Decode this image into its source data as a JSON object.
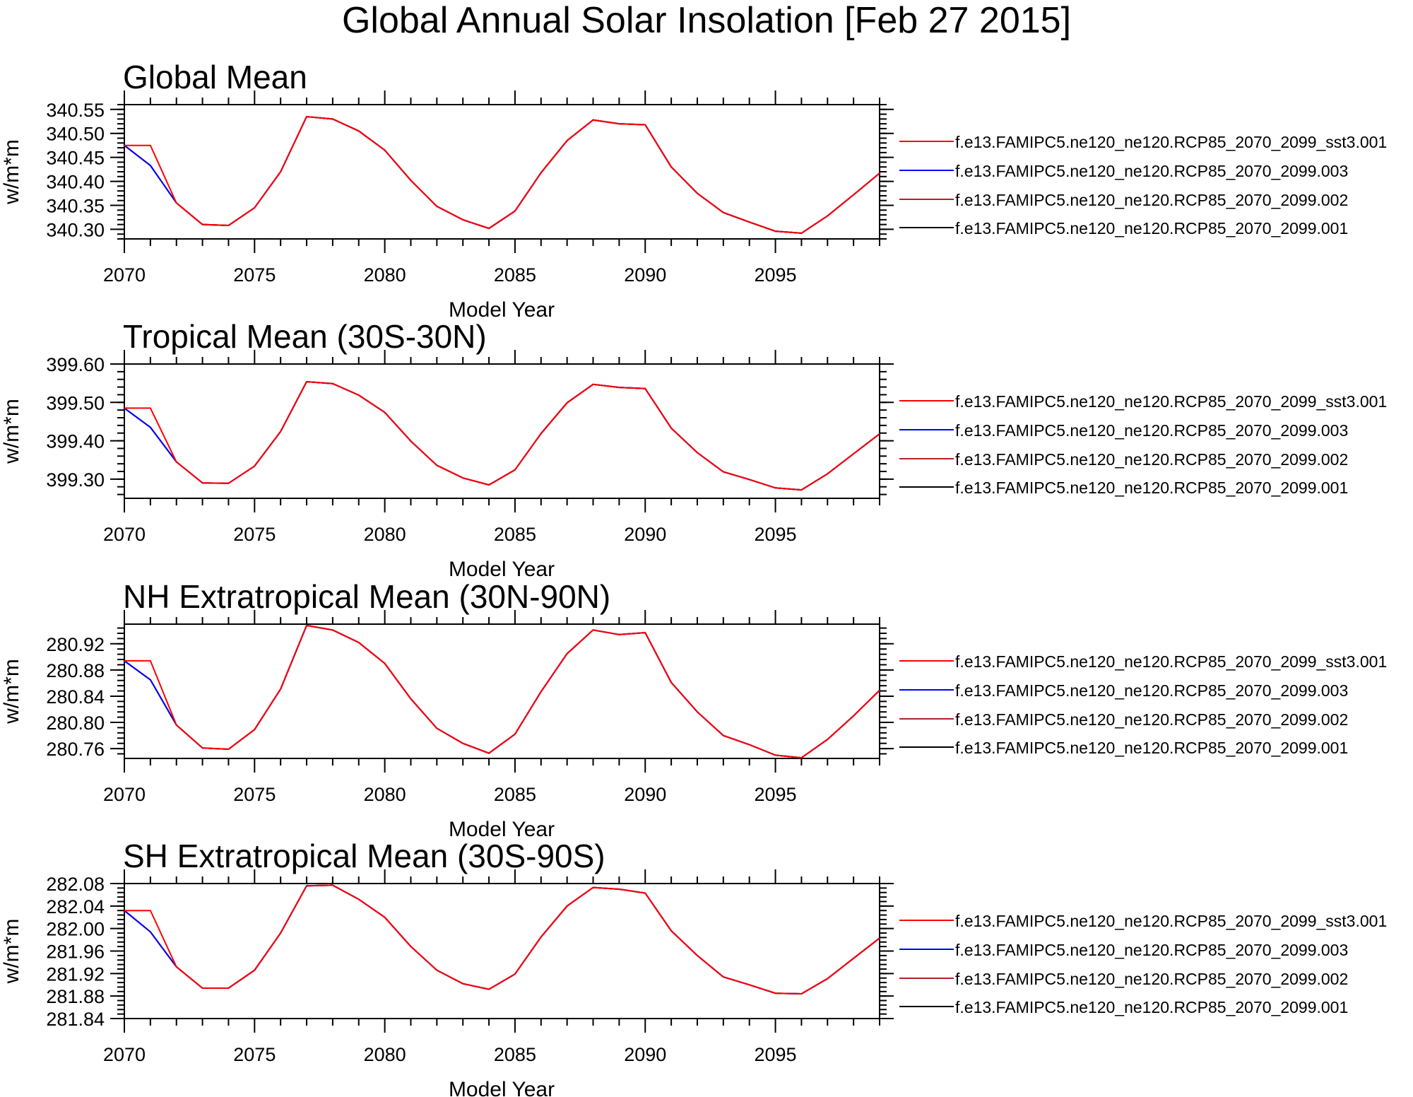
{
  "page": {
    "title": "Global Annual Solar Insolation [Feb 27 2015]"
  },
  "legend_entries": [
    {
      "name": "f.e13.FAMIPC5.ne120_ne120.RCP85_2070_2099_sst3.001",
      "color": "#ff0000"
    },
    {
      "name": "f.e13.FAMIPC5.ne120_ne120.RCP85_2070_2099.003",
      "color": "#0000ff"
    },
    {
      "name": "f.e13.FAMIPC5.ne120_ne120.RCP85_2070_2099.002",
      "color": "#b22222"
    },
    {
      "name": "f.e13.FAMIPC5.ne120_ne120.RCP85_2070_2099.001",
      "color": "#000000"
    }
  ],
  "chart_data": [
    {
      "type": "line",
      "title": "Global Mean",
      "xlabel": "Model Year",
      "ylabel": "w/m*m",
      "xlim": [
        2070,
        2099
      ],
      "ylim": [
        340.28,
        340.56
      ],
      "xticks": [
        "2070",
        "2075",
        "2080",
        "2085",
        "2090",
        "2095"
      ],
      "yticks": [
        "340.30",
        "340.35",
        "340.40",
        "340.45",
        "340.50",
        "340.55"
      ],
      "legend": "right",
      "x": [
        2070,
        2071,
        2072,
        2073,
        2074,
        2075,
        2076,
        2077,
        2078,
        2079,
        2080,
        2081,
        2082,
        2083,
        2084,
        2085,
        2086,
        2087,
        2088,
        2089,
        2090,
        2091,
        2092,
        2093,
        2094,
        2095,
        2096,
        2097,
        2098,
        2099
      ],
      "series": [
        {
          "name": "f.e13.FAMIPC5.ne120_ne120.RCP85_2070_2099_sst3.001",
          "color": "#ff0000",
          "values": [
            340.475,
            340.475,
            340.355,
            340.31,
            340.308,
            340.345,
            340.42,
            340.535,
            340.53,
            340.505,
            340.465,
            340.402,
            340.348,
            340.32,
            340.302,
            340.338,
            340.418,
            340.485,
            340.528,
            340.52,
            340.518,
            340.43,
            340.375,
            340.335,
            340.315,
            340.296,
            340.292,
            340.328,
            340.372,
            340.417
          ]
        },
        {
          "name": "f.e13.FAMIPC5.ne120_ne120.RCP85_2070_2099.003",
          "color": "#0000ff",
          "values": [
            340.475,
            340.433,
            340.355,
            340.31,
            340.308,
            340.345,
            340.42,
            340.535,
            340.53,
            340.505,
            340.465,
            340.402,
            340.348,
            340.32,
            340.302,
            340.338,
            340.418,
            340.485,
            340.528,
            340.52,
            340.518,
            340.43,
            340.375,
            340.335,
            340.315,
            340.296,
            340.292,
            340.328,
            340.372,
            340.417
          ]
        },
        {
          "name": "f.e13.FAMIPC5.ne120_ne120.RCP85_2070_2099.002",
          "color": "#b22222",
          "values": [
            340.475,
            340.433,
            340.355,
            340.31,
            340.308,
            340.345,
            340.42,
            340.535,
            340.53,
            340.505,
            340.465,
            340.402,
            340.348,
            340.32,
            340.302,
            340.338,
            340.418,
            340.485,
            340.528,
            340.52,
            340.518,
            340.43,
            340.375,
            340.335,
            340.315,
            340.296,
            340.292,
            340.328,
            340.372,
            340.417
          ]
        },
        {
          "name": "f.e13.FAMIPC5.ne120_ne120.RCP85_2070_2099.001",
          "color": "#000000",
          "values": [
            340.475,
            340.433,
            340.355,
            340.31,
            340.308,
            340.345,
            340.42,
            340.535,
            340.53,
            340.505,
            340.465,
            340.402,
            340.348,
            340.32,
            340.302,
            340.338,
            340.418,
            340.485,
            340.528,
            340.52,
            340.518,
            340.43,
            340.375,
            340.335,
            340.315,
            340.296,
            340.292,
            340.328,
            340.372,
            340.417
          ]
        }
      ]
    },
    {
      "type": "line",
      "title": "Tropical Mean (30S-30N)",
      "xlabel": "Model Year",
      "ylabel": "w/m*m",
      "xlim": [
        2070,
        2099
      ],
      "ylim": [
        399.25,
        399.6
      ],
      "xticks": [
        "2070",
        "2075",
        "2080",
        "2085",
        "2090",
        "2095"
      ],
      "yticks": [
        "399.30",
        "399.40",
        "399.50",
        "399.60"
      ],
      "legend": "right",
      "x": [
        2070,
        2071,
        2072,
        2073,
        2074,
        2075,
        2076,
        2077,
        2078,
        2079,
        2080,
        2081,
        2082,
        2083,
        2084,
        2085,
        2086,
        2087,
        2088,
        2089,
        2090,
        2091,
        2092,
        2093,
        2094,
        2095,
        2096,
        2097,
        2098,
        2099
      ],
      "series": [
        {
          "name": "f.e13.FAMIPC5.ne120_ne120.RCP85_2070_2099_sst3.001",
          "color": "#ff0000",
          "values": [
            399.485,
            399.485,
            399.345,
            399.29,
            399.289,
            399.334,
            399.424,
            399.554,
            399.549,
            399.519,
            399.474,
            399.399,
            399.336,
            399.303,
            399.285,
            399.324,
            399.419,
            399.499,
            399.547,
            399.539,
            399.536,
            399.433,
            399.369,
            399.319,
            399.299,
            399.277,
            399.272,
            399.314,
            399.366,
            399.418
          ]
        },
        {
          "name": "f.e13.FAMIPC5.ne120_ne120.RCP85_2070_2099.003",
          "color": "#0000ff",
          "values": [
            399.485,
            399.435,
            399.345,
            399.29,
            399.289,
            399.334,
            399.424,
            399.554,
            399.549,
            399.519,
            399.474,
            399.399,
            399.336,
            399.303,
            399.285,
            399.324,
            399.419,
            399.499,
            399.547,
            399.539,
            399.536,
            399.433,
            399.369,
            399.319,
            399.299,
            399.277,
            399.272,
            399.314,
            399.366,
            399.418
          ]
        },
        {
          "name": "f.e13.FAMIPC5.ne120_ne120.RCP85_2070_2099.002",
          "color": "#b22222",
          "values": [
            399.485,
            399.435,
            399.345,
            399.29,
            399.289,
            399.334,
            399.424,
            399.554,
            399.549,
            399.519,
            399.474,
            399.399,
            399.336,
            399.303,
            399.285,
            399.324,
            399.419,
            399.499,
            399.547,
            399.539,
            399.536,
            399.433,
            399.369,
            399.319,
            399.299,
            399.277,
            399.272,
            399.314,
            399.366,
            399.418
          ]
        },
        {
          "name": "f.e13.FAMIPC5.ne120_ne120.RCP85_2070_2099.001",
          "color": "#000000",
          "values": [
            399.485,
            399.435,
            399.345,
            399.29,
            399.289,
            399.334,
            399.424,
            399.554,
            399.549,
            399.519,
            399.474,
            399.399,
            399.336,
            399.303,
            399.285,
            399.324,
            399.419,
            399.499,
            399.547,
            399.539,
            399.536,
            399.433,
            399.369,
            399.319,
            399.299,
            399.277,
            399.272,
            399.314,
            399.366,
            399.418
          ]
        }
      ]
    },
    {
      "type": "line",
      "title": "NH Extratropical Mean (30N-90N)",
      "xlabel": "Model Year",
      "ylabel": "w/m*m",
      "xlim": [
        2070,
        2099
      ],
      "ylim": [
        280.745,
        280.95
      ],
      "xticks": [
        "2070",
        "2075",
        "2080",
        "2085",
        "2090",
        "2095"
      ],
      "yticks": [
        "280.76",
        "280.80",
        "280.84",
        "280.88",
        "280.92"
      ],
      "legend": "right",
      "x": [
        2070,
        2071,
        2072,
        2073,
        2074,
        2075,
        2076,
        2077,
        2078,
        2079,
        2080,
        2081,
        2082,
        2083,
        2084,
        2085,
        2086,
        2087,
        2088,
        2089,
        2090,
        2091,
        2092,
        2093,
        2094,
        2095,
        2096,
        2097,
        2098,
        2099
      ],
      "series": [
        {
          "name": "f.e13.FAMIPC5.ne120_ne120.RCP85_2070_2099_sst3.001",
          "color": "#ff0000",
          "values": [
            280.894,
            280.894,
            280.796,
            280.761,
            280.759,
            280.789,
            280.851,
            280.948,
            280.941,
            280.922,
            280.89,
            280.836,
            280.791,
            280.768,
            280.753,
            280.782,
            280.847,
            280.905,
            280.941,
            280.934,
            280.937,
            280.861,
            280.816,
            280.78,
            280.766,
            280.75,
            280.746,
            280.774,
            280.81,
            280.849
          ]
        },
        {
          "name": "f.e13.FAMIPC5.ne120_ne120.RCP85_2070_2099.003",
          "color": "#0000ff",
          "values": [
            280.894,
            280.865,
            280.796,
            280.761,
            280.759,
            280.789,
            280.851,
            280.948,
            280.941,
            280.922,
            280.89,
            280.836,
            280.791,
            280.768,
            280.753,
            280.782,
            280.847,
            280.905,
            280.941,
            280.934,
            280.937,
            280.861,
            280.816,
            280.78,
            280.766,
            280.75,
            280.746,
            280.774,
            280.81,
            280.849
          ]
        },
        {
          "name": "f.e13.FAMIPC5.ne120_ne120.RCP85_2070_2099.002",
          "color": "#b22222",
          "values": [
            280.894,
            280.865,
            280.796,
            280.761,
            280.759,
            280.789,
            280.851,
            280.948,
            280.941,
            280.922,
            280.89,
            280.836,
            280.791,
            280.768,
            280.753,
            280.782,
            280.847,
            280.905,
            280.941,
            280.934,
            280.937,
            280.861,
            280.816,
            280.78,
            280.766,
            280.75,
            280.746,
            280.774,
            280.81,
            280.849
          ]
        },
        {
          "name": "f.e13.FAMIPC5.ne120_ne120.RCP85_2070_2099.001",
          "color": "#000000",
          "values": [
            280.894,
            280.865,
            280.796,
            280.761,
            280.759,
            280.789,
            280.851,
            280.948,
            280.941,
            280.922,
            280.89,
            280.836,
            280.791,
            280.768,
            280.753,
            280.782,
            280.847,
            280.905,
            280.941,
            280.934,
            280.937,
            280.861,
            280.816,
            280.78,
            280.766,
            280.75,
            280.746,
            280.774,
            280.81,
            280.849
          ]
        }
      ]
    },
    {
      "type": "line",
      "title": "SH Extratropical Mean (30S-90S)",
      "xlabel": "Model Year",
      "ylabel": "w/m*m",
      "xlim": [
        2070,
        2099
      ],
      "ylim": [
        281.84,
        282.08
      ],
      "xticks": [
        "2070",
        "2075",
        "2080",
        "2085",
        "2090",
        "2095"
      ],
      "yticks": [
        "281.84",
        "281.88",
        "281.92",
        "281.96",
        "282.00",
        "282.04",
        "282.08"
      ],
      "legend": "right",
      "x": [
        2070,
        2071,
        2072,
        2073,
        2074,
        2075,
        2076,
        2077,
        2078,
        2079,
        2080,
        2081,
        2082,
        2083,
        2084,
        2085,
        2086,
        2087,
        2088,
        2089,
        2090,
        2091,
        2092,
        2093,
        2094,
        2095,
        2096,
        2097,
        2098,
        2099
      ],
      "series": [
        {
          "name": "f.e13.FAMIPC5.ne120_ne120.RCP85_2070_2099_sst3.001",
          "color": "#ff0000",
          "values": [
            282.032,
            282.032,
            281.932,
            281.894,
            281.894,
            281.926,
            281.992,
            282.076,
            282.077,
            282.052,
            282.02,
            281.968,
            281.926,
            281.902,
            281.892,
            281.919,
            281.985,
            282.04,
            282.073,
            282.07,
            282.063,
            281.996,
            281.952,
            281.914,
            281.9,
            281.885,
            281.884,
            281.911,
            281.947,
            281.983
          ]
        },
        {
          "name": "f.e13.FAMIPC5.ne120_ne120.RCP85_2070_2099.003",
          "color": "#0000ff",
          "values": [
            282.032,
            281.994,
            281.932,
            281.894,
            281.894,
            281.926,
            281.992,
            282.076,
            282.077,
            282.052,
            282.02,
            281.968,
            281.926,
            281.902,
            281.892,
            281.919,
            281.985,
            282.04,
            282.073,
            282.07,
            282.063,
            281.996,
            281.952,
            281.914,
            281.9,
            281.885,
            281.884,
            281.911,
            281.947,
            281.983
          ]
        },
        {
          "name": "f.e13.FAMIPC5.ne120_ne120.RCP85_2070_2099.002",
          "color": "#b22222",
          "values": [
            282.032,
            281.994,
            281.932,
            281.894,
            281.894,
            281.926,
            281.992,
            282.076,
            282.077,
            282.052,
            282.02,
            281.968,
            281.926,
            281.902,
            281.892,
            281.919,
            281.985,
            282.04,
            282.073,
            282.07,
            282.063,
            281.996,
            281.952,
            281.914,
            281.9,
            281.885,
            281.884,
            281.911,
            281.947,
            281.983
          ]
        },
        {
          "name": "f.e13.FAMIPC5.ne120_ne120.RCP85_2070_2099.001",
          "color": "#000000",
          "values": [
            282.032,
            281.994,
            281.932,
            281.894,
            281.894,
            281.926,
            281.992,
            282.076,
            282.077,
            282.052,
            282.02,
            281.968,
            281.926,
            281.902,
            281.892,
            281.919,
            281.985,
            282.04,
            282.073,
            282.07,
            282.063,
            281.996,
            281.952,
            281.914,
            281.9,
            281.885,
            281.884,
            281.911,
            281.947,
            281.983
          ]
        }
      ]
    }
  ]
}
